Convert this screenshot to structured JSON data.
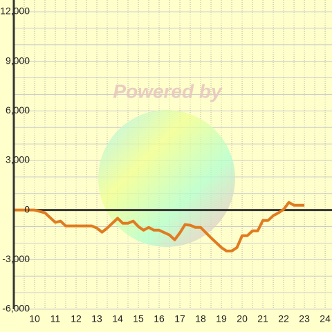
{
  "chart_data": {
    "type": "line",
    "watermark": "Powered by",
    "x": [
      9,
      10,
      10.5,
      11,
      11.25,
      11.5,
      12.75,
      13,
      13.25,
      13.5,
      14,
      14.25,
      14.5,
      14.75,
      15,
      15.25,
      15.5,
      15.75,
      16,
      16.5,
      16.75,
      17,
      17.25,
      17.5,
      17.75,
      18,
      18.5,
      19,
      19.25,
      19.5,
      19.75,
      20,
      20.25,
      20.5,
      20.75,
      21,
      21.25,
      21.5,
      21.75,
      22,
      22.25,
      22.5,
      23
    ],
    "series": [
      {
        "color": "#e07b20",
        "values": [
          0,
          0,
          -170,
          -750,
          -670,
          -960,
          -960,
          -1090,
          -1340,
          -1090,
          -500,
          -800,
          -800,
          -670,
          -1000,
          -1220,
          -1050,
          -1220,
          -1220,
          -1510,
          -1800,
          -1380,
          -880,
          -920,
          -1050,
          -1050,
          -1680,
          -2270,
          -2480,
          -2480,
          -2270,
          -1550,
          -1550,
          -1260,
          -1260,
          -630,
          -630,
          -340,
          -170,
          40,
          460,
          290,
          290
        ]
      }
    ],
    "xlim": [
      9,
      24.33
    ],
    "ylim": [
      -6000,
      12000
    ],
    "xticks": [
      10,
      11,
      12,
      13,
      14,
      15,
      16,
      17,
      18,
      19,
      20,
      21,
      22,
      23,
      24
    ],
    "x_minor_ticks": [
      9.5,
      10.5,
      11.5,
      12.5,
      13.5,
      14.5,
      15.5,
      16.5,
      17.5,
      18.5,
      19.5,
      20.5,
      21.5,
      22.5,
      23.5
    ],
    "yticks": [
      {
        "value": -6000,
        "label": "-6,000"
      },
      {
        "value": -3000,
        "label": "-3,000"
      },
      0,
      {
        "value": 3000,
        "label": "3,000"
      },
      {
        "value": 6000,
        "label": "6,000"
      },
      {
        "value": 9000,
        "label": "9,000"
      },
      {
        "value": 12000,
        "label": "12,000"
      }
    ],
    "y_minor_ticks": [
      -5000,
      -4000,
      -2000,
      -1000,
      1000,
      2000,
      4000,
      5000,
      7000,
      8000,
      10000,
      11000
    ],
    "grid": true
  }
}
